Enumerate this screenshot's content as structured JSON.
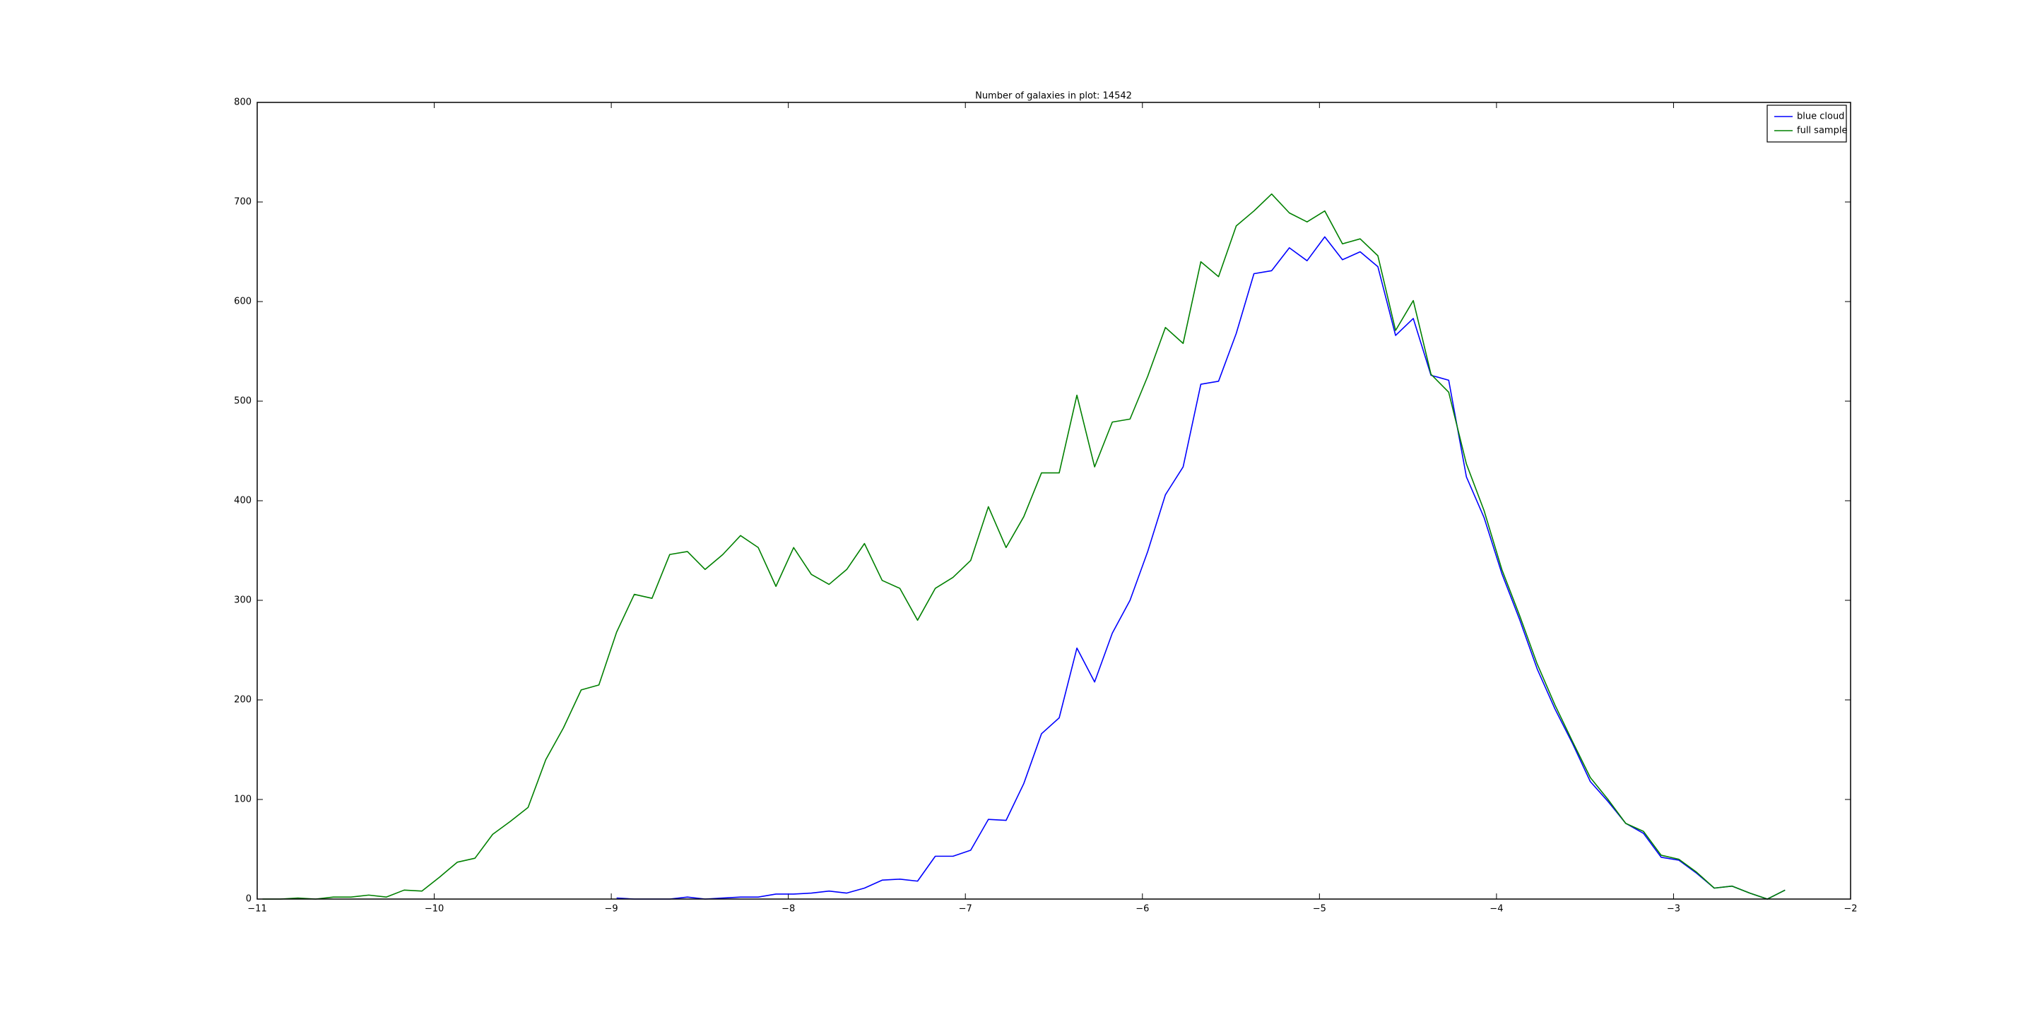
{
  "chart_data": {
    "type": "line",
    "title": "Number of galaxies in plot: 14542",
    "x": [
      -10.97,
      -10.87,
      -10.77,
      -10.67,
      -10.57,
      -10.47,
      -10.37,
      -10.27,
      -10.17,
      -10.07,
      -9.97,
      -9.87,
      -9.77,
      -9.67,
      -9.57,
      -9.47,
      -9.37,
      -9.27,
      -9.17,
      -9.07,
      -8.97,
      -8.87,
      -8.77,
      -8.67,
      -8.57,
      -8.47,
      -8.37,
      -8.27,
      -8.17,
      -8.07,
      -7.97,
      -7.87,
      -7.77,
      -7.67,
      -7.57,
      -7.47,
      -7.37,
      -7.27,
      -7.17,
      -7.07,
      -6.97,
      -6.87,
      -6.77,
      -6.67,
      -6.57,
      -6.47,
      -6.37,
      -6.27,
      -6.17,
      -6.07,
      -5.97,
      -5.87,
      -5.77,
      -5.67,
      -5.57,
      -5.47,
      -5.37,
      -5.27,
      -5.17,
      -5.07,
      -4.97,
      -4.87,
      -4.77,
      -4.67,
      -4.57,
      -4.47,
      -4.37,
      -4.27,
      -4.17,
      -4.07,
      -3.97,
      -3.87,
      -3.77,
      -3.67,
      -3.57,
      -3.47,
      -3.37,
      -3.27,
      -3.17,
      -3.07,
      -2.97,
      -2.87,
      -2.77,
      -2.67,
      -2.57,
      -2.47,
      -2.37
    ],
    "series": [
      {
        "name": "blue cloud",
        "color": "#0000ff",
        "values": [
          null,
          null,
          null,
          null,
          null,
          null,
          null,
          null,
          null,
          null,
          null,
          null,
          null,
          null,
          null,
          null,
          null,
          null,
          null,
          null,
          1,
          0,
          0,
          0,
          2,
          0,
          1,
          2,
          2,
          5,
          5,
          6,
          8,
          6,
          11,
          19,
          20,
          18,
          43,
          43,
          49,
          80,
          79,
          116,
          166,
          182,
          252,
          218,
          267,
          300,
          349,
          406,
          434,
          517,
          520,
          568,
          628,
          631,
          654,
          641,
          665,
          642,
          650,
          635,
          566,
          583,
          526,
          521,
          424,
          383,
          327,
          281,
          231,
          191,
          156,
          118,
          98,
          76,
          66,
          42,
          39,
          26,
          11,
          13,
          6,
          0,
          9
        ]
      },
      {
        "name": "full sample",
        "color": "#008000",
        "values": [
          0,
          0,
          1,
          0,
          2,
          2,
          4,
          2,
          9,
          8,
          22,
          37,
          41,
          65,
          78,
          92,
          140,
          172,
          210,
          215,
          268,
          306,
          302,
          346,
          349,
          331,
          346,
          365,
          353,
          314,
          353,
          326,
          316,
          331,
          357,
          320,
          312,
          280,
          312,
          323,
          340,
          394,
          353,
          384,
          428,
          428,
          506,
          434,
          479,
          482,
          525,
          574,
          558,
          640,
          625,
          676,
          691,
          708,
          689,
          680,
          691,
          658,
          663,
          646,
          571,
          601,
          527,
          509,
          437,
          390,
          331,
          285,
          236,
          195,
          158,
          122,
          100,
          76,
          68,
          44,
          40,
          27,
          11,
          13,
          6,
          0,
          9
        ]
      }
    ],
    "xlim": [
      -11,
      -2
    ],
    "xticks": [
      {
        "value": -11,
        "label": "−11"
      },
      {
        "value": -10,
        "label": "−10"
      },
      {
        "value": -9,
        "label": "−9"
      },
      {
        "value": -8,
        "label": "−8"
      },
      {
        "value": -7,
        "label": "−7"
      },
      {
        "value": -6,
        "label": "−6"
      },
      {
        "value": -5,
        "label": "−5"
      },
      {
        "value": -4,
        "label": "−4"
      },
      {
        "value": -3,
        "label": "−3"
      },
      {
        "value": -2,
        "label": "−2"
      }
    ],
    "ylim": [
      0,
      800
    ],
    "yticks": [
      0,
      100,
      200,
      300,
      400,
      500,
      600,
      700,
      800
    ],
    "grid": false,
    "legend": "upper right"
  }
}
